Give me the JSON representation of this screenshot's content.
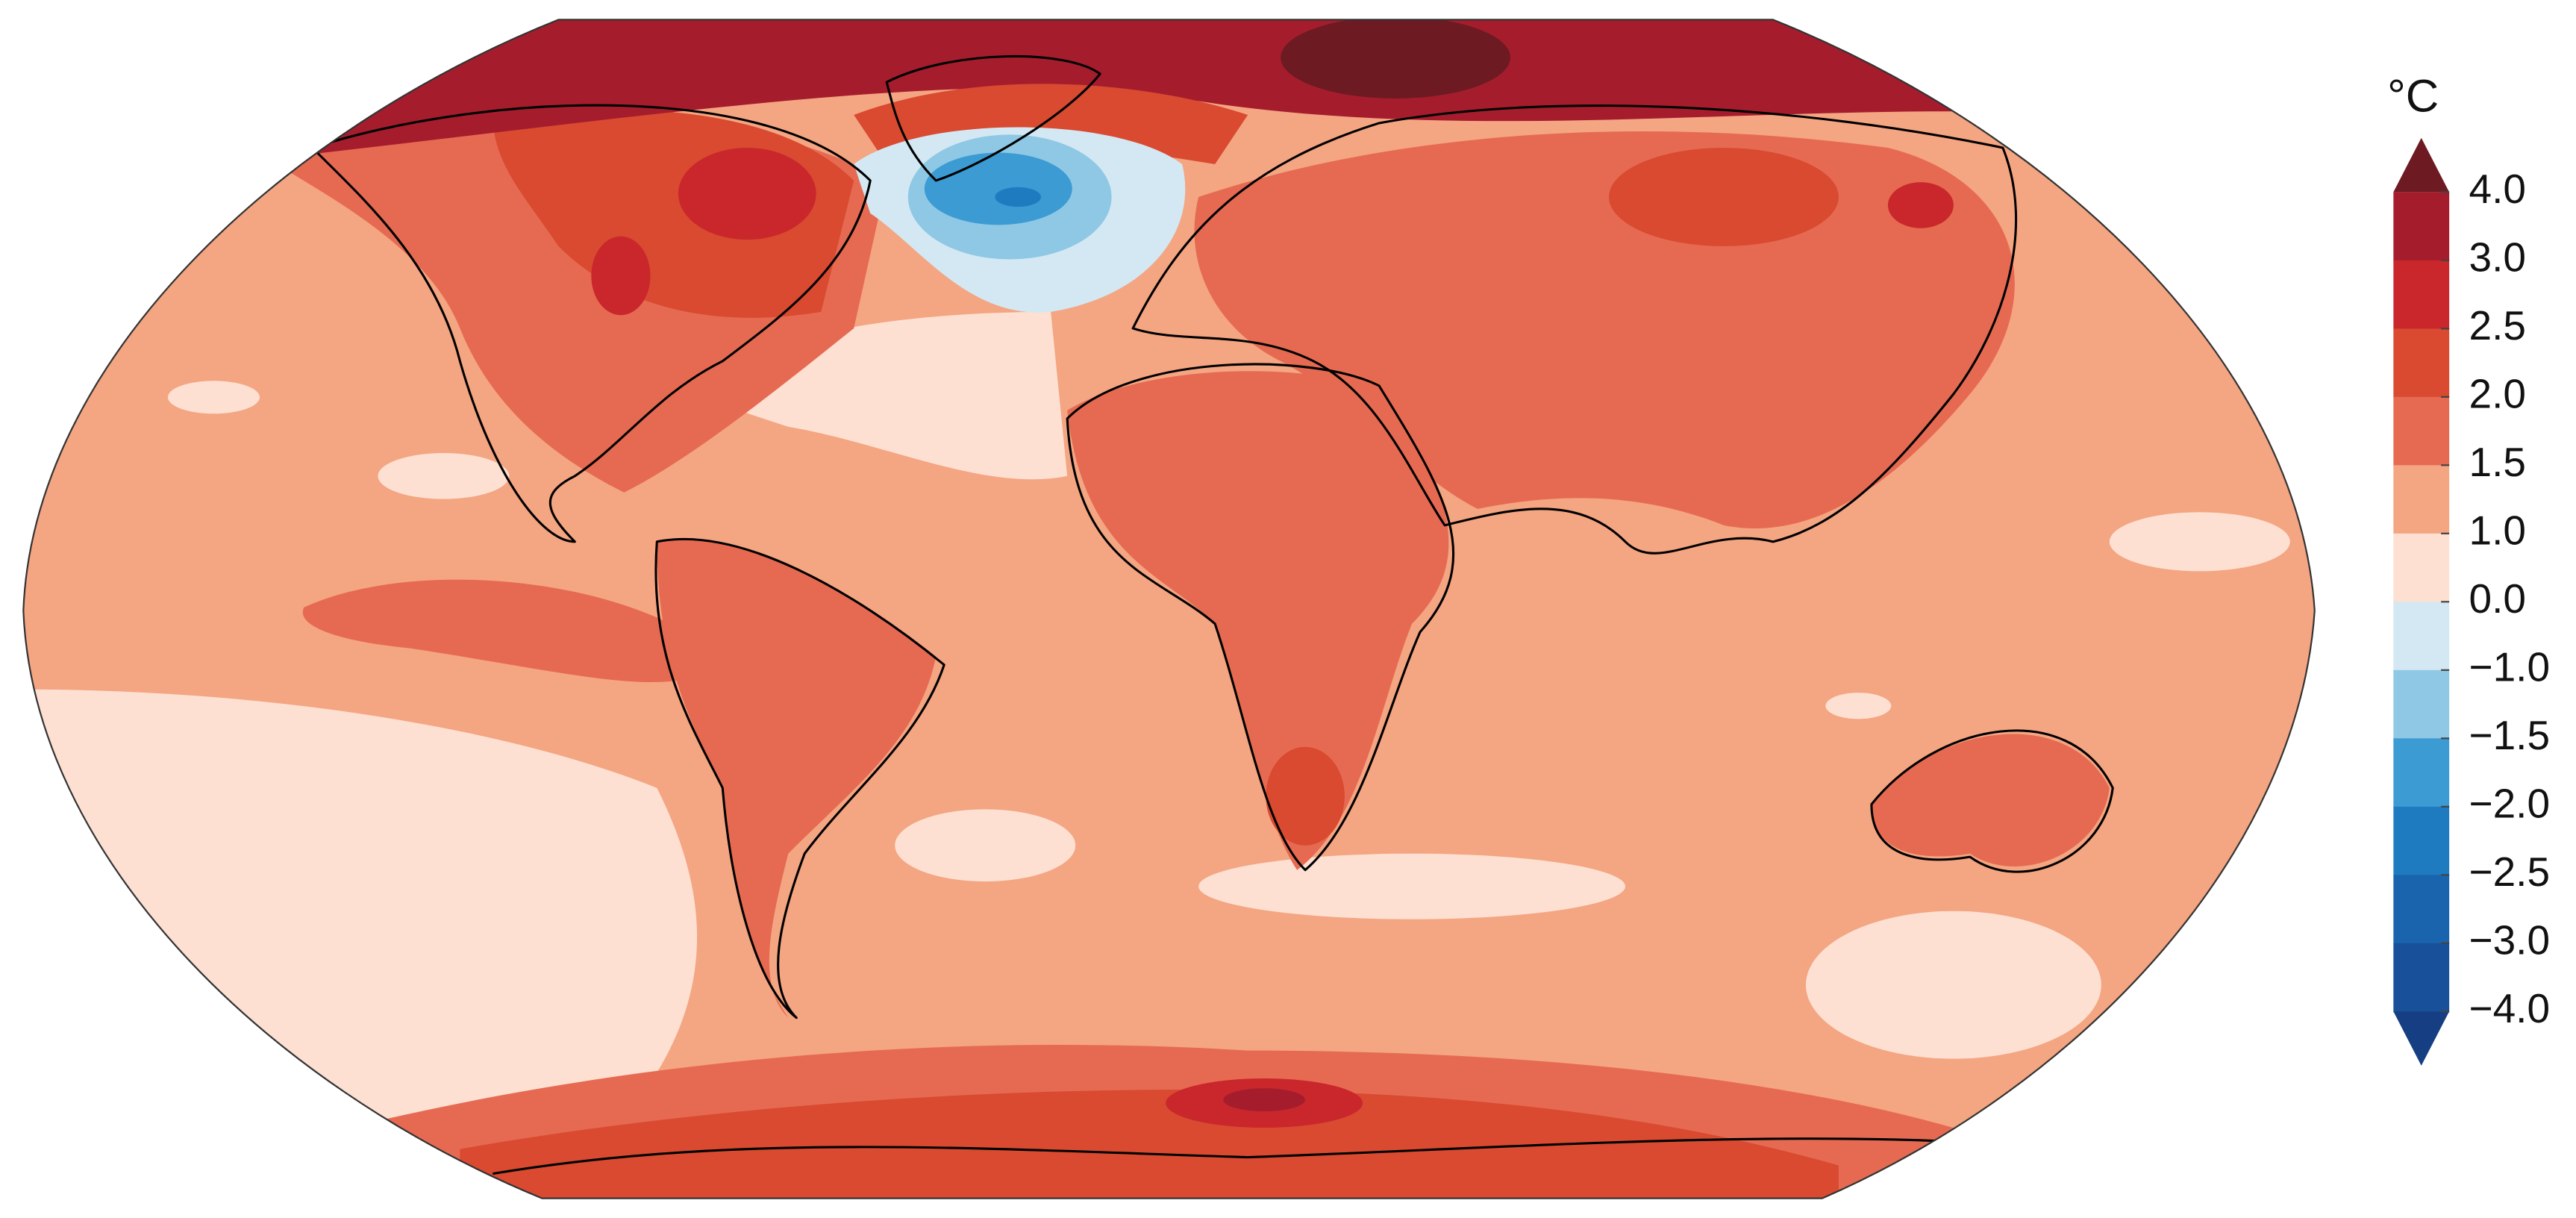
{
  "colorbar": {
    "unit": "°C",
    "ticks": [
      {
        "value": 4.0,
        "label": "4.0"
      },
      {
        "value": 3.0,
        "label": "3.0"
      },
      {
        "value": 2.5,
        "label": "2.5"
      },
      {
        "value": 2.0,
        "label": "2.0"
      },
      {
        "value": 1.5,
        "label": "1.5"
      },
      {
        "value": 1.0,
        "label": "1.0"
      },
      {
        "value": 0.0,
        "label": "0.0"
      },
      {
        "value": -1.0,
        "label": "−1.0"
      },
      {
        "value": -1.5,
        "label": "−1.5"
      },
      {
        "value": -2.0,
        "label": "−2.0"
      },
      {
        "value": -2.5,
        "label": "−2.5"
      },
      {
        "value": -3.0,
        "label": "−3.0"
      },
      {
        "value": -4.0,
        "label": "−4.0"
      }
    ],
    "colors": [
      "#6e1a22",
      "#a51d2d",
      "#c9272c",
      "#d94a30",
      "#e66a52",
      "#f4a582",
      "#fde0d2",
      "#d3e8f3",
      "#8ec8e5",
      "#3c9bd3",
      "#1f7bc0",
      "#1a64ad",
      "#185099",
      "#163f83"
    ]
  }
}
